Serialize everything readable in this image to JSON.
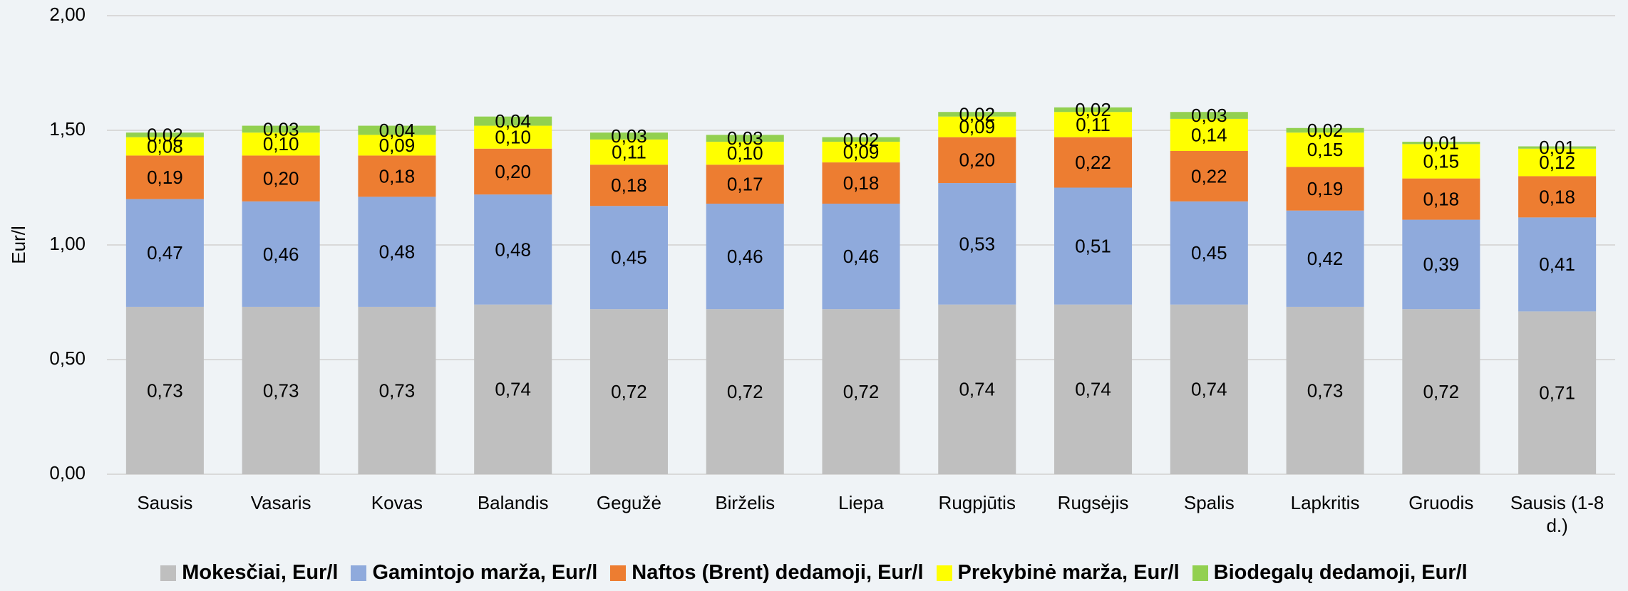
{
  "chart_data": {
    "type": "stacked_bar",
    "ylabel": "Eur/l",
    "categories": [
      "Sausis",
      "Vasaris",
      "Kovas",
      "Balandis",
      "Gegužė",
      "Birželis",
      "Liepa",
      "Rugpjūtis",
      "Rugsėjis",
      "Spalis",
      "Lapkritis",
      "Gruodis",
      "Sausis (1-8 d.)"
    ],
    "ylim": [
      0,
      2
    ],
    "yticks": [
      {
        "value": 0,
        "label": "0,00"
      },
      {
        "value": 0.5,
        "label": "0,50"
      },
      {
        "value": 1,
        "label": "1,00"
      },
      {
        "value": 1.5,
        "label": "1,50"
      },
      {
        "value": 2,
        "label": "2,00"
      }
    ],
    "grid": true,
    "legend": "bottom",
    "series": [
      {
        "name": "Mokesčiai, Eur/l",
        "color": "#bfbfbf",
        "values": [
          0.73,
          0.73,
          0.73,
          0.74,
          0.72,
          0.72,
          0.72,
          0.74,
          0.74,
          0.74,
          0.73,
          0.72,
          0.71
        ],
        "value_labels": [
          "0,73",
          "0,73",
          "0,73",
          "0,74",
          "0,72",
          "0,72",
          "0,72",
          "0,74",
          "0,74",
          "0,74",
          "0,73",
          "0,72",
          "0,71"
        ]
      },
      {
        "name": "Gamintojo marža, Eur/l",
        "color": "#8faadc",
        "values": [
          0.47,
          0.46,
          0.48,
          0.48,
          0.45,
          0.46,
          0.46,
          0.53,
          0.51,
          0.45,
          0.42,
          0.39,
          0.41
        ],
        "value_labels": [
          "0,47",
          "0,46",
          "0,48",
          "0,48",
          "0,45",
          "0,46",
          "0,46",
          "0,53",
          "0,51",
          "0,45",
          "0,42",
          "0,39",
          "0,41"
        ]
      },
      {
        "name": "Naftos (Brent) dedamoji, Eur/l",
        "color": "#ed7d31",
        "values": [
          0.19,
          0.2,
          0.18,
          0.2,
          0.18,
          0.17,
          0.18,
          0.2,
          0.22,
          0.22,
          0.19,
          0.18,
          0.18
        ],
        "value_labels": [
          "0,19",
          "0,20",
          "0,18",
          "0,20",
          "0,18",
          "0,17",
          "0,18",
          "0,20",
          "0,22",
          "0,22",
          "0,19",
          "0,18",
          "0,18"
        ]
      },
      {
        "name": "Prekybinė marža, Eur/l",
        "color": "#ffff00",
        "values": [
          0.08,
          0.1,
          0.09,
          0.1,
          0.11,
          0.1,
          0.09,
          0.09,
          0.11,
          0.14,
          0.15,
          0.15,
          0.12
        ],
        "value_labels": [
          "0,08",
          "0,10",
          "0,09",
          "0,10",
          "0,11",
          "0,10",
          "0,09",
          "0,09",
          "0,11",
          "0,14",
          "0,15",
          "0,15",
          "0,12"
        ]
      },
      {
        "name": "Biodegalų dedamoji, Eur/l",
        "color": "#92d050",
        "values": [
          0.02,
          0.03,
          0.04,
          0.04,
          0.03,
          0.03,
          0.02,
          0.02,
          0.02,
          0.03,
          0.02,
          0.01,
          0.01
        ],
        "value_labels": [
          "0,02",
          "0,03",
          "0,04",
          "0,04",
          "0,03",
          "0,03",
          "0,02",
          "0,02",
          "0,02",
          "0,03",
          "0,02",
          "0,01",
          "0,01"
        ]
      }
    ]
  }
}
